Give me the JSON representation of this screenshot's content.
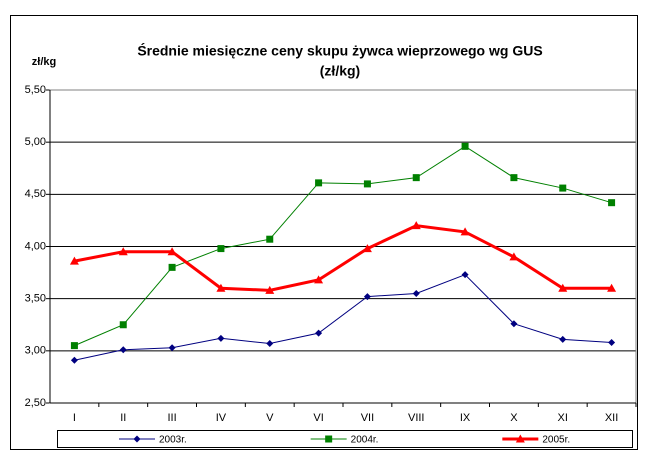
{
  "chart_data": {
    "type": "line",
    "title": [
      "Średnie miesięczne ceny skupu żywca wieprzowego wg GUS",
      "(zł/kg)"
    ],
    "y_label": "zł/kg",
    "categories": [
      "I",
      "II",
      "III",
      "IV",
      "V",
      "VI",
      "VII",
      "VIII",
      "IX",
      "X",
      "XI",
      "XII"
    ],
    "series": [
      {
        "name": "2003r.",
        "color": "#000080",
        "marker": "diamond",
        "values": [
          2.91,
          3.01,
          3.03,
          3.12,
          3.07,
          3.17,
          3.52,
          3.55,
          3.73,
          3.26,
          3.11,
          3.08
        ]
      },
      {
        "name": "2004r.",
        "color": "#008000",
        "marker": "square",
        "values": [
          3.05,
          3.25,
          3.8,
          3.98,
          4.07,
          4.61,
          4.6,
          4.66,
          4.96,
          4.66,
          4.56,
          4.42
        ]
      },
      {
        "name": "2005r.",
        "color": "#ff0000",
        "marker": "triangle",
        "values": [
          3.86,
          3.95,
          3.95,
          3.6,
          3.58,
          3.68,
          3.98,
          4.2,
          4.14,
          3.9,
          3.6,
          3.6
        ]
      }
    ],
    "ylim": [
      2.5,
      5.5
    ],
    "yticks": [
      {
        "value": 2.5,
        "label": "2,50"
      },
      {
        "value": 3,
        "label": "3,00"
      },
      {
        "value": 3.5,
        "label": "3,50"
      },
      {
        "value": 4,
        "label": "4,00"
      },
      {
        "value": 4.5,
        "label": "4,50"
      },
      {
        "value": 5,
        "label": "5,00"
      },
      {
        "value": 5.5,
        "label": "5,50"
      }
    ],
    "grid": true,
    "legend": "bottom"
  }
}
